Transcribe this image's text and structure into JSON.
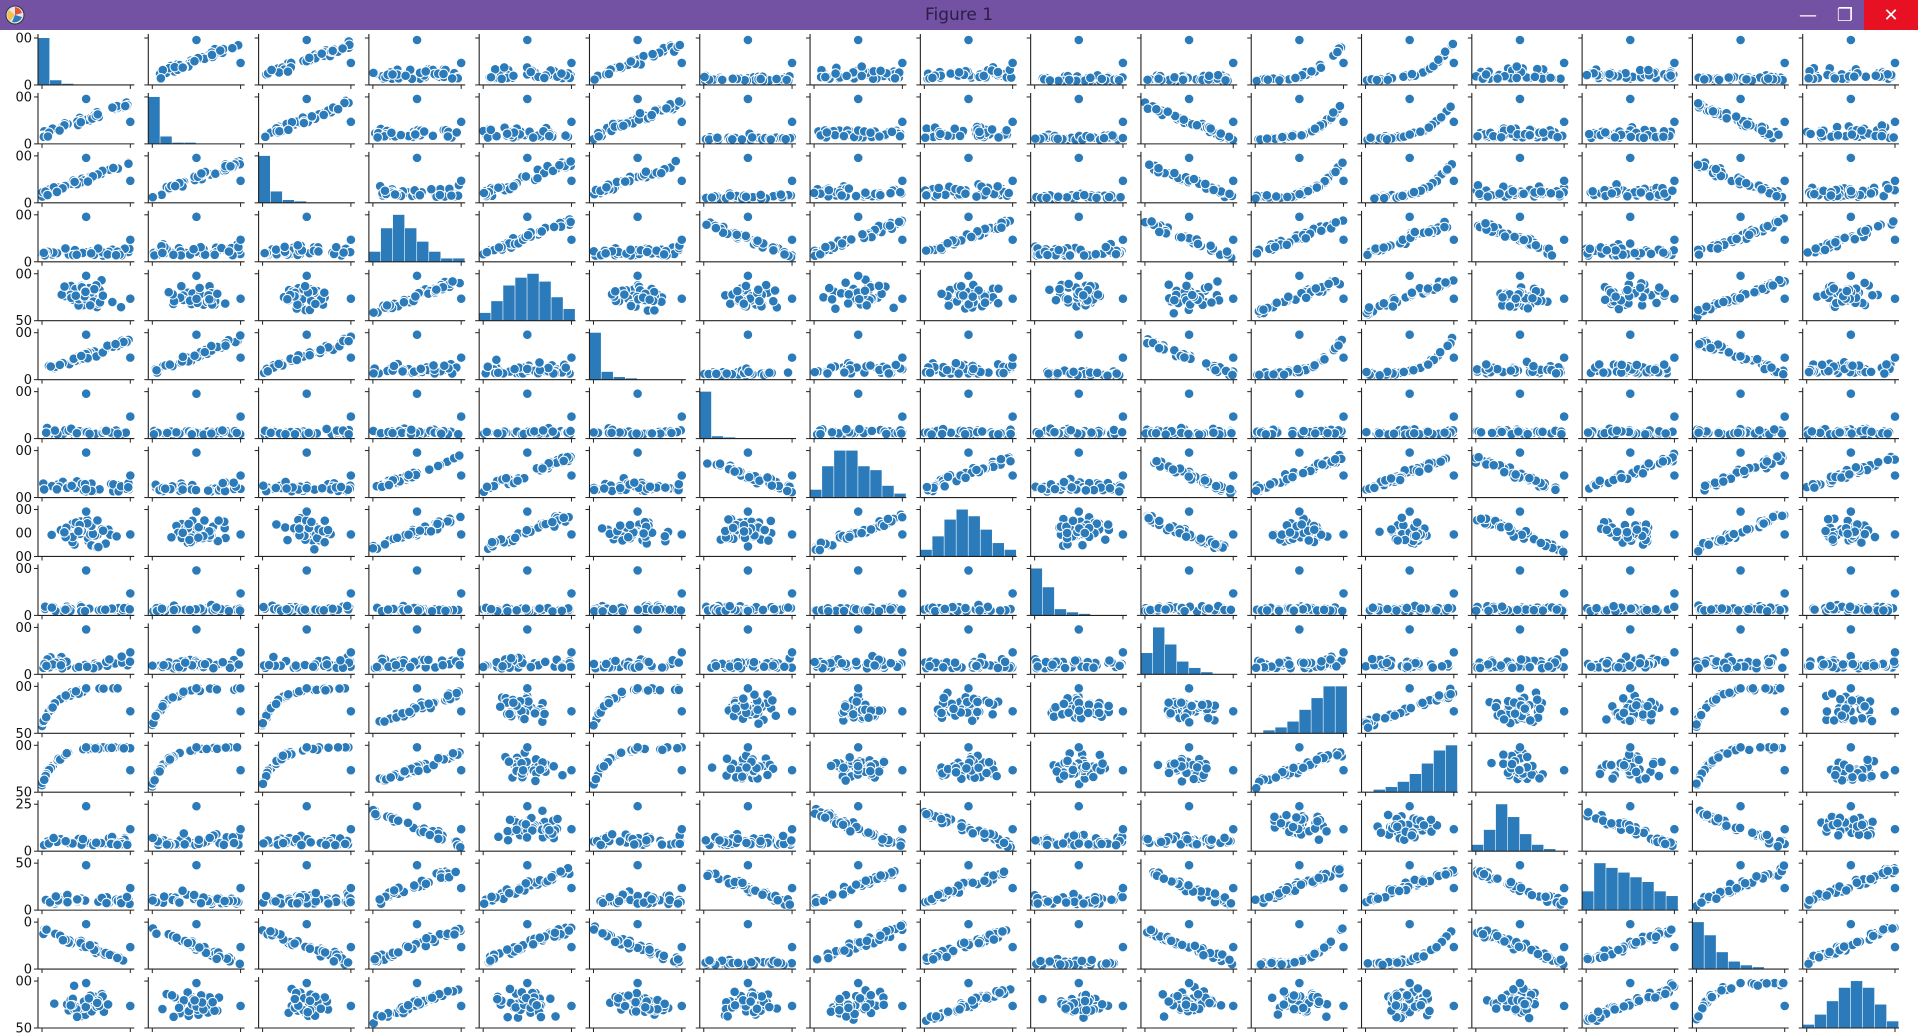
{
  "window": {
    "title": "Figure 1",
    "titlebar_color": "#7352a4",
    "icons": {
      "app": "matplotlib-figure-icon",
      "minimize": "minimize-icon",
      "maximize": "maximize-icon",
      "close": "close-icon"
    },
    "minimize_glyph": "—",
    "maximize_glyph": "❐",
    "close_glyph": "✕"
  },
  "chart_data": {
    "type": "scatter",
    "kind": "pairplot",
    "grid_size": 17,
    "diagonal": "histogram",
    "off_diagonal": "scatter",
    "grid": false,
    "colors": {
      "marker": "#2b7bba",
      "marker_edge": "#ffffff",
      "axis": "#222222"
    },
    "row_tick_labels": [
      [
        "00",
        "0"
      ],
      [
        "00",
        "0"
      ],
      [
        "00",
        "0"
      ],
      [
        "00",
        "0"
      ],
      [
        "00",
        "50"
      ],
      [
        "00",
        "0"
      ],
      [
        "00",
        "0"
      ],
      [
        "00",
        "00"
      ],
      [
        "00",
        "00",
        "00"
      ],
      [
        "00",
        "0"
      ],
      [
        "00",
        "0"
      ],
      [
        "00",
        "50"
      ],
      [
        "00",
        "50"
      ],
      [
        "25",
        "0"
      ],
      [
        "50",
        "0"
      ],
      [
        "0",
        "0"
      ],
      [
        "00",
        "50"
      ]
    ],
    "relationships": [
      "hist",
      "pos",
      "pos",
      "scat",
      "scat",
      "pos",
      "low",
      "scat",
      "scat",
      "low",
      "low",
      "exp",
      "exp",
      "scat",
      "scat",
      "low",
      "scat",
      "pos",
      "hist",
      "pos",
      "scat",
      "scat",
      "pos",
      "low",
      "scat",
      "scat",
      "low",
      "neg",
      "exp",
      "exp",
      "scat",
      "scat",
      "neg",
      "scat",
      "pos",
      "pos",
      "hist",
      "scat",
      "pos",
      "pos",
      "low",
      "scat",
      "scat",
      "low",
      "neg",
      "exp",
      "exp",
      "scat",
      "scat",
      "neg",
      "scat",
      "scat",
      "scat",
      "scat",
      "hist",
      "pos",
      "scat",
      "neg",
      "pos",
      "pos",
      "scat",
      "neg",
      "pos",
      "pos",
      "neg",
      "scat",
      "pos",
      "pos",
      "cloud",
      "cloud",
      "cloud",
      "pos",
      "hist",
      "cloud",
      "cloud",
      "cloud",
      "cloud",
      "cloud",
      "cloud",
      "pos",
      "pos",
      "cloud",
      "cloud",
      "pos",
      "cloud",
      "pos",
      "pos",
      "pos",
      "scat",
      "scat",
      "hist",
      "low",
      "scat",
      "scat",
      "low",
      "neg",
      "exp",
      "exp",
      "scat",
      "scat",
      "neg",
      "scat",
      "low",
      "low",
      "low",
      "low",
      "low",
      "low",
      "hist",
      "low",
      "low",
      "low",
      "low",
      "low",
      "low",
      "low",
      "low",
      "low",
      "low",
      "scat",
      "scat",
      "scat",
      "pos",
      "pos",
      "scat",
      "neg",
      "hist",
      "pos",
      "scat",
      "neg",
      "pos",
      "pos",
      "neg",
      "pos",
      "pos",
      "pos",
      "cloud",
      "cloud",
      "cloud",
      "pos",
      "pos",
      "cloud",
      "cloud",
      "pos",
      "hist",
      "cloud",
      "neg",
      "cloud",
      "cloud",
      "neg",
      "cloud",
      "pos",
      "cloud",
      "low",
      "low",
      "low",
      "low",
      "low",
      "low",
      "low",
      "low",
      "low",
      "hist",
      "low",
      "low",
      "low",
      "low",
      "low",
      "low",
      "low",
      "scat",
      "scat",
      "scat",
      "scat",
      "scat",
      "scat",
      "scat",
      "scat",
      "scat",
      "scat",
      "hist",
      "scat",
      "scat",
      "scat",
      "scat",
      "scat",
      "scat",
      "sat",
      "sat",
      "sat",
      "pos",
      "cloud",
      "sat",
      "cloud",
      "cloud",
      "cloud",
      "cloud",
      "cloud",
      "hist",
      "pos",
      "cloud",
      "cloud",
      "sat",
      "cloud",
      "sat",
      "sat",
      "sat",
      "pos",
      "cloud",
      "sat",
      "cloud",
      "cloud",
      "cloud",
      "cloud",
      "cloud",
      "pos",
      "hist",
      "cloud",
      "cloud",
      "sat",
      "cloud",
      "scat",
      "scat",
      "scat",
      "neg",
      "cloud",
      "scat",
      "scat",
      "neg",
      "neg",
      "scat",
      "scat",
      "cloud",
      "cloud",
      "hist",
      "neg",
      "neg",
      "cloud",
      "scat",
      "scat",
      "scat",
      "pos",
      "pos",
      "scat",
      "neg",
      "pos",
      "pos",
      "scat",
      "neg",
      "pos",
      "pos",
      "neg",
      "hist",
      "pos",
      "pos",
      "neg",
      "neg",
      "neg",
      "pos",
      "pos",
      "neg",
      "low",
      "pos",
      "pos",
      "low",
      "neg",
      "exp",
      "exp",
      "neg",
      "pos",
      "hist",
      "pos",
      "cloud",
      "cloud",
      "cloud",
      "pos",
      "cloud",
      "cloud",
      "cloud",
      "cloud",
      "pos",
      "cloud",
      "cloud",
      "cloud",
      "cloud",
      "cloud",
      "pos",
      "sat",
      "hist"
    ],
    "diagonal_histograms": [
      [
        40,
        4,
        1,
        0,
        0,
        0,
        0,
        0
      ],
      [
        38,
        6,
        1,
        1,
        0,
        0,
        0,
        0
      ],
      [
        33,
        8,
        2,
        1,
        0,
        0,
        0,
        0
      ],
      [
        3,
        10,
        14,
        10,
        6,
        3,
        1,
        1
      ],
      [
        2,
        5,
        9,
        11,
        12,
        10,
        6,
        3
      ],
      [
        36,
        6,
        2,
        1,
        0,
        0,
        0,
        0
      ],
      [
        40,
        2,
        1,
        0,
        0,
        0,
        0,
        0
      ],
      [
        2,
        8,
        12,
        12,
        8,
        7,
        3,
        1
      ],
      [
        2,
        6,
        11,
        14,
        12,
        8,
        4,
        2
      ],
      [
        30,
        18,
        4,
        2,
        1,
        0,
        0,
        0
      ],
      [
        10,
        22,
        14,
        6,
        3,
        1,
        0,
        0
      ],
      [
        0,
        1,
        2,
        4,
        8,
        12,
        16,
        16
      ],
      [
        0,
        1,
        2,
        4,
        7,
        11,
        16,
        18
      ],
      [
        3,
        10,
        22,
        16,
        8,
        3,
        1,
        0
      ],
      [
        4,
        10,
        9,
        8,
        7,
        6,
        4,
        3
      ],
      [
        25,
        18,
        9,
        4,
        2,
        1,
        0,
        0
      ],
      [
        1,
        4,
        8,
        12,
        14,
        12,
        7,
        2
      ]
    ]
  }
}
